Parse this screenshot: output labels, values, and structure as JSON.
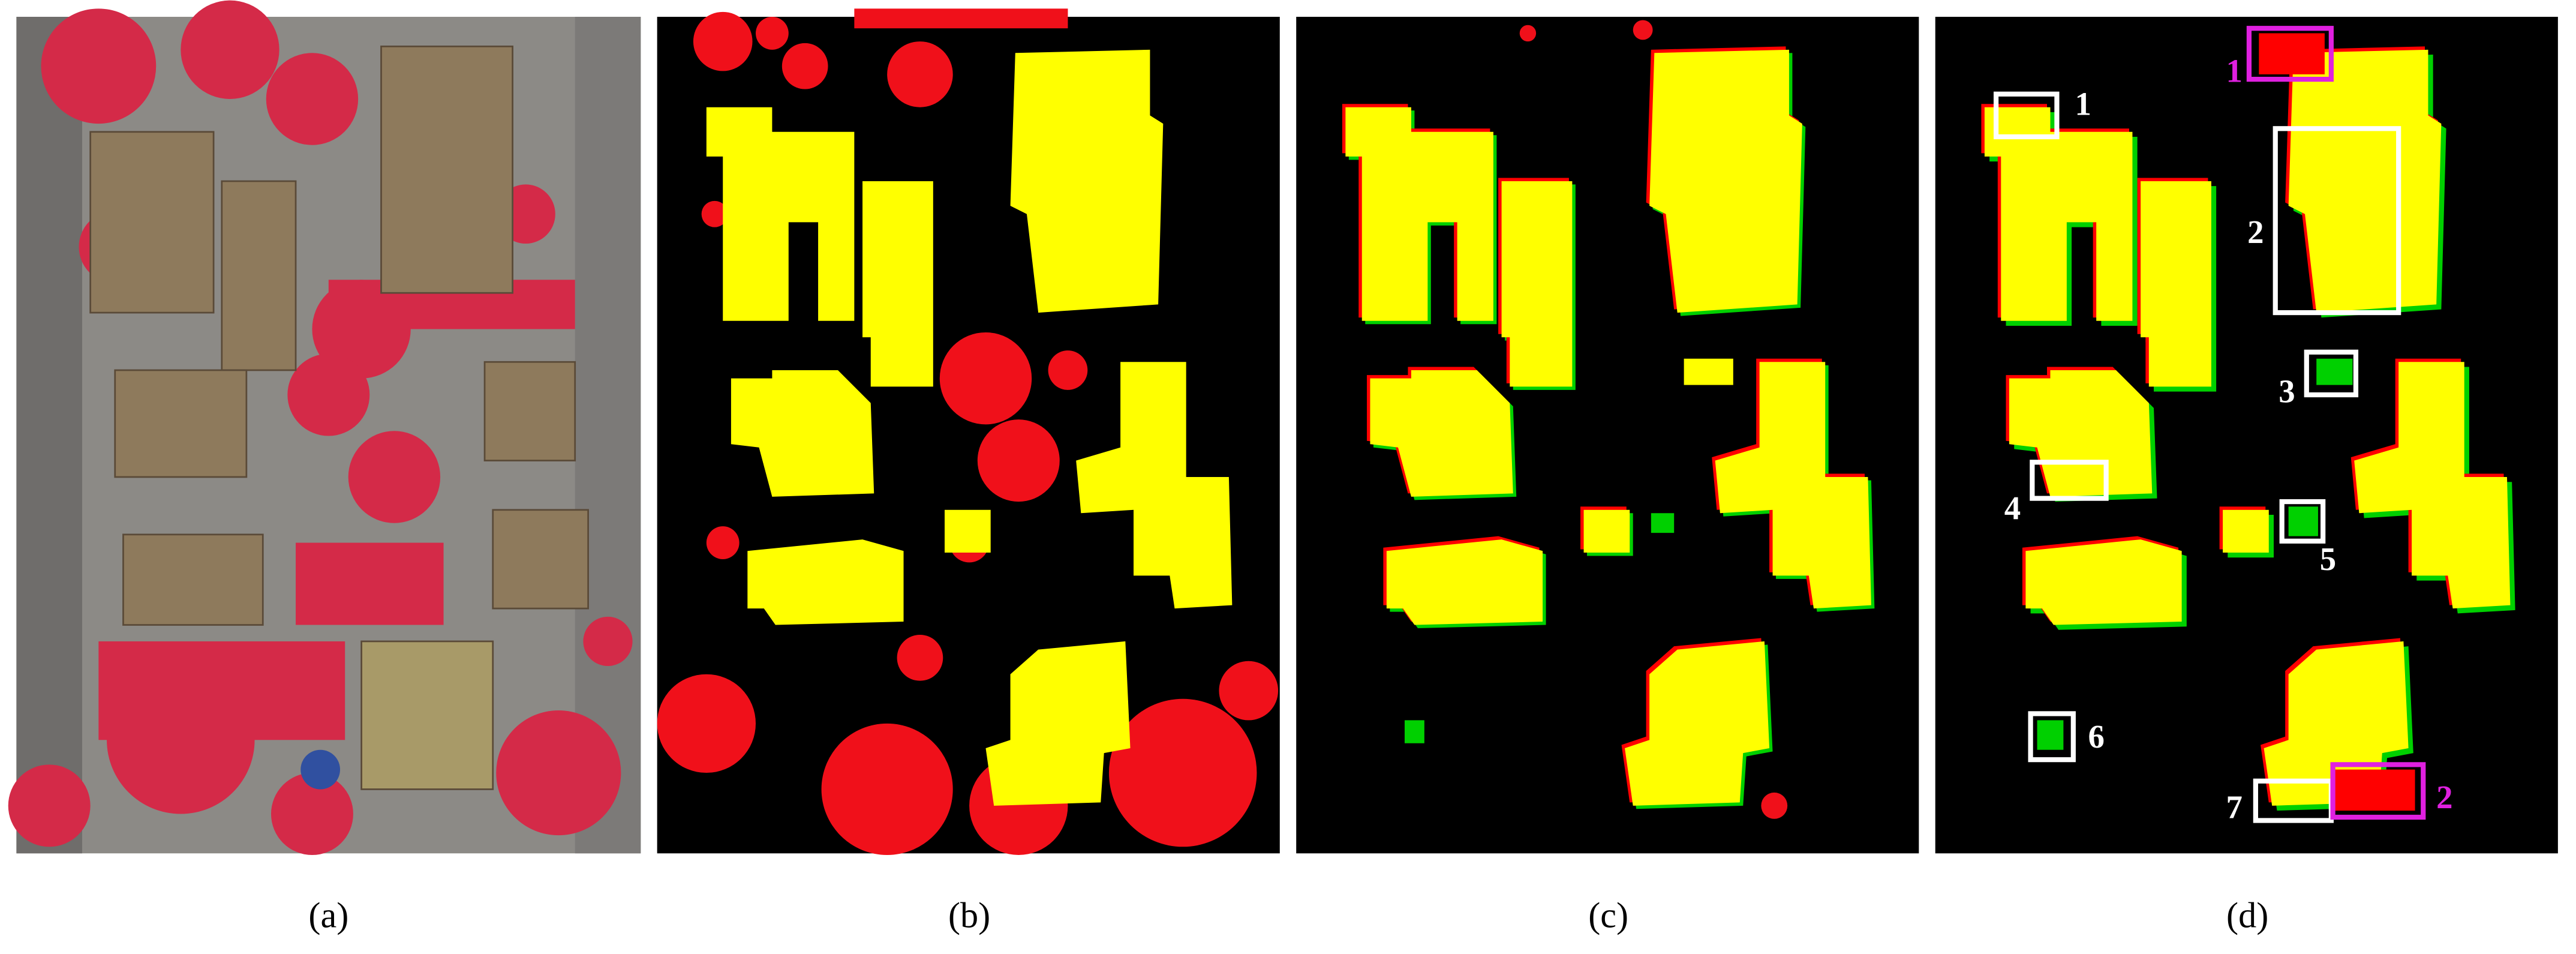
{
  "panels": [
    {
      "label": "(a)"
    },
    {
      "label": "(b)"
    },
    {
      "label": "(c)"
    },
    {
      "label": "(d)"
    }
  ],
  "annotations": {
    "white": [
      "1",
      "2",
      "3",
      "4",
      "5",
      "6",
      "7"
    ],
    "magenta": [
      "1",
      "2"
    ]
  }
}
